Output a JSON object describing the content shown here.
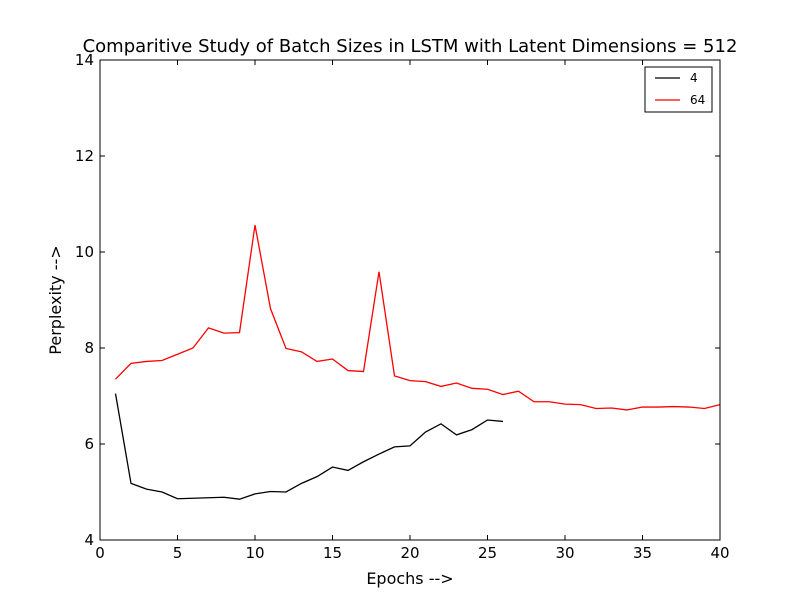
{
  "chart_data": {
    "type": "line",
    "title": "Comparitive Study of Batch Sizes in LSTM with Latent Dimensions = 512",
    "xlabel": "Epochs -->",
    "ylabel": "Perplexity -->",
    "xlim": [
      0,
      40
    ],
    "ylim": [
      4,
      14
    ],
    "xticks": [
      0,
      5,
      10,
      15,
      20,
      25,
      30,
      35,
      40
    ],
    "yticks": [
      4,
      6,
      8,
      10,
      12,
      14
    ],
    "grid": false,
    "legend": "top-right",
    "series": [
      {
        "name": "4",
        "color": "#000000",
        "x": [
          1,
          2,
          3,
          4,
          5,
          6,
          7,
          8,
          9,
          10,
          11,
          12,
          13,
          14,
          15,
          16,
          17,
          18,
          19,
          20,
          21,
          22,
          23,
          24,
          25,
          26
        ],
        "y": [
          7.05,
          5.18,
          5.06,
          5.0,
          4.86,
          4.87,
          4.88,
          4.89,
          4.85,
          4.96,
          5.01,
          5.0,
          5.18,
          5.32,
          5.52,
          5.45,
          5.63,
          5.79,
          5.94,
          5.96,
          6.25,
          6.42,
          6.19,
          6.3,
          6.5,
          6.47
        ]
      },
      {
        "name": "64",
        "color": "#ff0000",
        "x": [
          1,
          2,
          3,
          4,
          5,
          6,
          7,
          8,
          9,
          10,
          11,
          12,
          13,
          14,
          15,
          16,
          17,
          18,
          19,
          20,
          21,
          22,
          23,
          24,
          25,
          26,
          27,
          28,
          29,
          30,
          31,
          32,
          33,
          34,
          35,
          36,
          37,
          38,
          39,
          40
        ],
        "y": [
          7.35,
          7.68,
          7.72,
          7.74,
          7.87,
          8.0,
          8.42,
          8.31,
          8.32,
          10.56,
          8.82,
          7.99,
          7.92,
          7.72,
          7.77,
          7.53,
          7.51,
          9.59,
          7.42,
          7.32,
          7.3,
          7.2,
          7.27,
          7.16,
          7.14,
          7.03,
          7.1,
          6.88,
          6.88,
          6.83,
          6.82,
          6.74,
          6.75,
          6.71,
          6.77,
          6.77,
          6.78,
          6.77,
          6.74,
          6.82
        ]
      }
    ]
  }
}
